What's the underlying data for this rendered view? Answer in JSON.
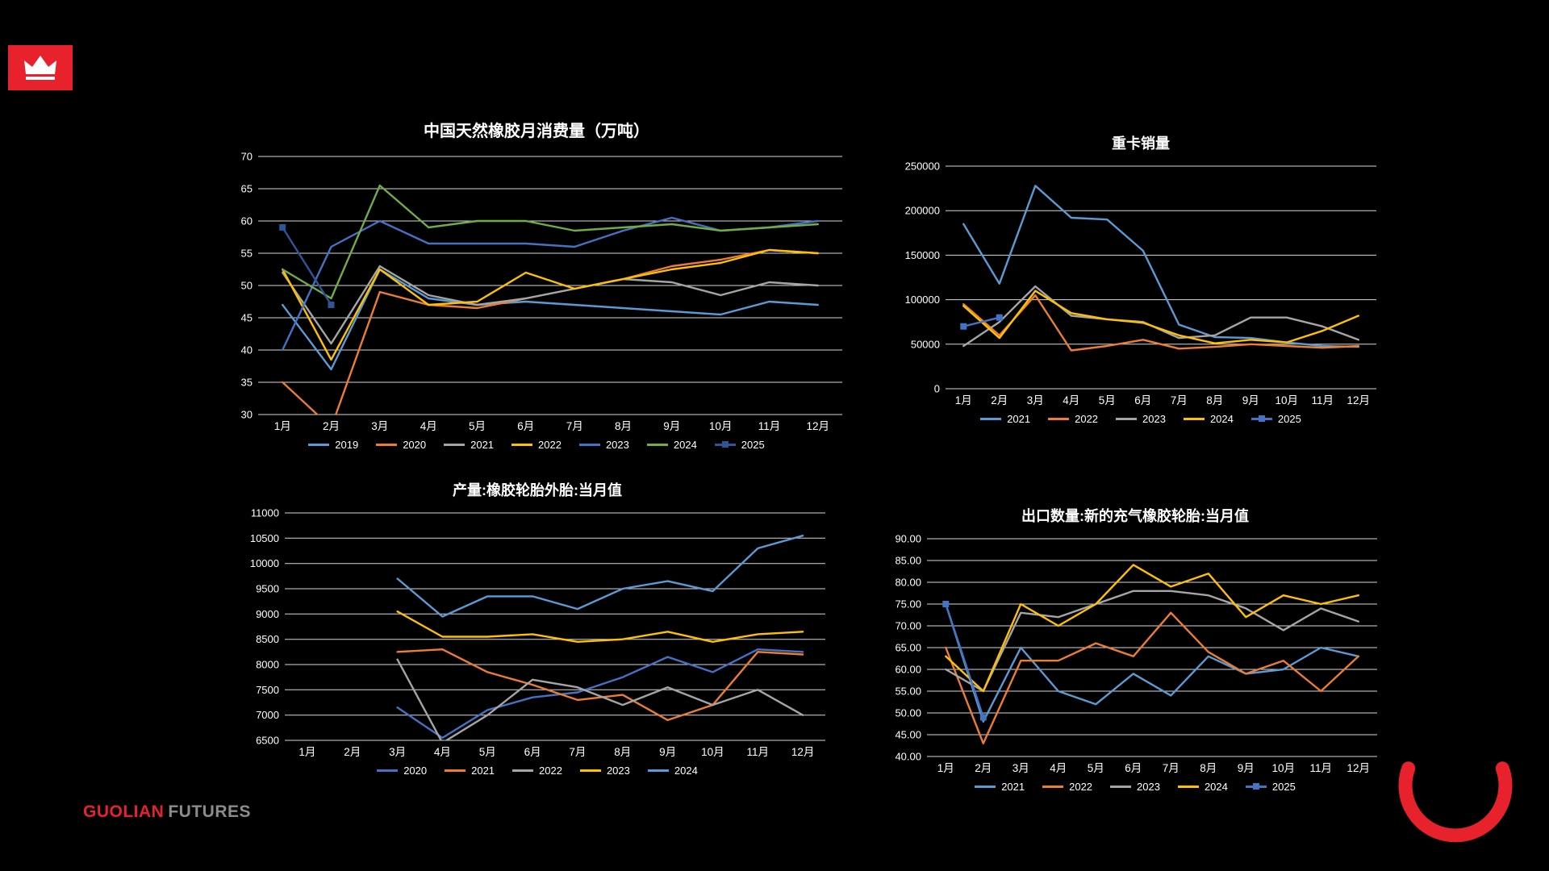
{
  "page": {
    "colors": {
      "background": "#000000",
      "accent_red": "#E8222D",
      "text": "#FFFFFF",
      "grid": "#FFFFFF"
    },
    "footer": {
      "brand_red": "GUOLIAN",
      "brand_gray": "FUTURES"
    },
    "logo": {
      "icon": "crown-icon"
    }
  },
  "chart_data": [
    {
      "type": "line",
      "title": "中国天然橡胶月消费量（万吨）",
      "categories": [
        "1月",
        "2月",
        "3月",
        "4月",
        "5月",
        "6月",
        "7月",
        "8月",
        "9月",
        "10月",
        "11月",
        "12月"
      ],
      "ylim": [
        30,
        70
      ],
      "ystep": 5,
      "yformat": "int",
      "grid": true,
      "legend_position": "bottom",
      "series": [
        {
          "name": "2019",
          "color": "#5B9BD5",
          "values": [
            47,
            37,
            52.5,
            48,
            47,
            47.5,
            47,
            46.5,
            46,
            45.5,
            47.5,
            47
          ]
        },
        {
          "name": "2020",
          "color": "#ED7D31",
          "values": [
            35,
            28,
            49,
            47,
            46.5,
            48,
            49.5,
            51,
            53,
            54,
            55.5,
            55
          ]
        },
        {
          "name": "2021",
          "color": "#A5A5A5",
          "values": [
            52,
            41,
            53,
            48.5,
            47,
            48,
            49.5,
            51,
            50.5,
            48.5,
            50.5,
            50
          ]
        },
        {
          "name": "2022",
          "color": "#FFC000",
          "values": [
            52.5,
            38.5,
            52.5,
            47,
            47.5,
            52,
            49.5,
            51,
            52.5,
            53.5,
            55.5,
            55
          ]
        },
        {
          "name": "2023",
          "color": "#4472C4",
          "values": [
            40,
            56,
            60,
            56.5,
            56.5,
            56.5,
            56,
            58.5,
            60.5,
            58.5,
            59,
            60
          ]
        },
        {
          "name": "2024",
          "color": "#70AD47",
          "values": [
            52.5,
            48,
            65.5,
            59,
            60,
            60,
            58.5,
            59,
            59.5,
            58.5,
            59,
            59.5
          ]
        },
        {
          "name": "2025",
          "color": "#2F5597",
          "marker": "square",
          "values": [
            59,
            47,
            null,
            null,
            null,
            null,
            null,
            null,
            null,
            null,
            null,
            null
          ]
        }
      ]
    },
    {
      "type": "line",
      "title": "重卡销量",
      "categories": [
        "1月",
        "2月",
        "3月",
        "4月",
        "5月",
        "6月",
        "7月",
        "8月",
        "9月",
        "10月",
        "11月",
        "12月"
      ],
      "ylim": [
        0,
        250000
      ],
      "ystep": 50000,
      "yformat": "int",
      "grid": true,
      "legend_position": "bottom",
      "series": [
        {
          "name": "2021",
          "color": "#5B9BD5",
          "values": [
            185000,
            118000,
            228000,
            192000,
            190000,
            155000,
            72000,
            58000,
            57000,
            52000,
            48000,
            47000
          ]
        },
        {
          "name": "2022",
          "color": "#ED7D31",
          "values": [
            95000,
            60000,
            105000,
            43000,
            48000,
            55000,
            45000,
            47000,
            50000,
            48000,
            46000,
            48000
          ]
        },
        {
          "name": "2023",
          "color": "#A5A5A5",
          "values": [
            48000,
            75000,
            115000,
            82000,
            78000,
            75000,
            57000,
            60000,
            80000,
            80000,
            70000,
            55000
          ]
        },
        {
          "name": "2024",
          "color": "#FFC000",
          "values": [
            93000,
            57000,
            110000,
            85000,
            78000,
            74000,
            60000,
            51000,
            55000,
            52000,
            65000,
            82000
          ]
        },
        {
          "name": "2025",
          "color": "#4472C4",
          "marker": "square",
          "values": [
            70000,
            80000,
            null,
            null,
            null,
            null,
            null,
            null,
            null,
            null,
            null,
            null
          ]
        }
      ]
    },
    {
      "type": "line",
      "title": "产量:橡胶轮胎外胎:当月值",
      "categories": [
        "1月",
        "2月",
        "3月",
        "4月",
        "5月",
        "6月",
        "7月",
        "8月",
        "9月",
        "10月",
        "11月",
        "12月"
      ],
      "ylim": [
        6500,
        11000
      ],
      "ystep": 500,
      "yformat": "int",
      "grid": true,
      "legend_position": "bottom",
      "series": [
        {
          "name": "2020",
          "color": "#4472C4",
          "values": [
            null,
            null,
            7150,
            6550,
            7100,
            7350,
            7450,
            7750,
            8150,
            7850,
            8300,
            8250
          ]
        },
        {
          "name": "2021",
          "color": "#ED7D31",
          "values": [
            null,
            null,
            8250,
            8300,
            7850,
            7600,
            7300,
            7400,
            6900,
            7200,
            8250,
            8200
          ]
        },
        {
          "name": "2022",
          "color": "#A5A5A5",
          "values": [
            null,
            null,
            8100,
            6450,
            7000,
            7700,
            7550,
            7200,
            7550,
            7200,
            7500,
            7000
          ]
        },
        {
          "name": "2023",
          "color": "#FFC000",
          "values": [
            null,
            null,
            9050,
            8550,
            8550,
            8600,
            8450,
            8500,
            8650,
            8450,
            8600,
            8650
          ]
        },
        {
          "name": "2024",
          "color": "#5B9BD5",
          "values": [
            null,
            null,
            9700,
            8950,
            9350,
            9350,
            9100,
            9500,
            9650,
            9450,
            10300,
            10550
          ]
        }
      ]
    },
    {
      "type": "line",
      "title": "出口数量:新的充气橡胶轮胎:当月值",
      "categories": [
        "1月",
        "2月",
        "3月",
        "4月",
        "5月",
        "6月",
        "7月",
        "8月",
        "9月",
        "10月",
        "11月",
        "12月"
      ],
      "ylim": [
        40,
        90
      ],
      "ystep": 5,
      "yformat": "2dp",
      "grid": true,
      "legend_position": "bottom",
      "series": [
        {
          "name": "2021",
          "color": "#5B9BD5",
          "values": [
            75,
            48,
            65,
            55,
            52,
            59,
            54,
            63,
            59,
            60,
            65,
            63
          ]
        },
        {
          "name": "2022",
          "color": "#ED7D31",
          "values": [
            65,
            43,
            62,
            62,
            66,
            63,
            73,
            64,
            59,
            62,
            55,
            63
          ]
        },
        {
          "name": "2023",
          "color": "#A5A5A5",
          "values": [
            60,
            55,
            73,
            72,
            75,
            78,
            78,
            77,
            74,
            69,
            74,
            71
          ]
        },
        {
          "name": "2024",
          "color": "#FFC000",
          "values": [
            63,
            55,
            75,
            70,
            75,
            84,
            79,
            82,
            72,
            77,
            75,
            77
          ]
        },
        {
          "name": "2025",
          "color": "#4472C4",
          "marker": "square",
          "values": [
            75,
            49,
            null,
            null,
            null,
            null,
            null,
            null,
            null,
            null,
            null,
            null
          ]
        }
      ]
    }
  ]
}
